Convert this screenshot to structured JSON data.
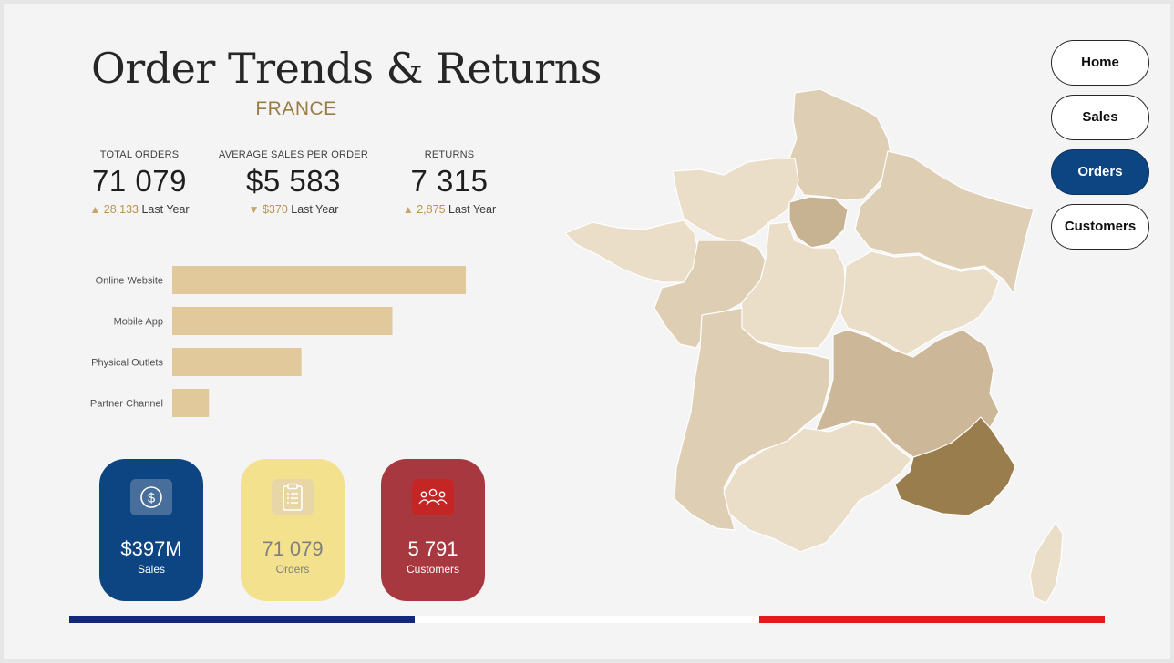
{
  "header": {
    "title": "Order Trends & Returns",
    "subtitle": "FRANCE"
  },
  "kpis": [
    {
      "label": "TOTAL ORDERS",
      "value": "71 079",
      "direction": "up",
      "delta": "28,133",
      "delta_label": "Last Year"
    },
    {
      "label": "AVERAGE SALES PER ORDER",
      "value": "$5 583",
      "direction": "down",
      "delta": "$370",
      "delta_label": "Last Year"
    },
    {
      "label": "RETURNS",
      "value": "7 315",
      "direction": "up",
      "delta": "2,875",
      "delta_label": "Last Year"
    }
  ],
  "chart_data": [
    {
      "type": "bar",
      "orientation": "horizontal",
      "categories": [
        "Online Website",
        "Mobile App",
        "Physical Outlets",
        "Partner Channel"
      ],
      "values": [
        100,
        75,
        44,
        12.5
      ],
      "grid": false,
      "bar_color": "#e2c99b"
    },
    {
      "type": "choropleth",
      "regions": [
        {
          "name": "Hauts-de-France",
          "shade": 0.25
        },
        {
          "name": "Normandie",
          "shade": 0.1
        },
        {
          "name": "Île-de-France",
          "shade": 0.5
        },
        {
          "name": "Grand Est",
          "shade": 0.25
        },
        {
          "name": "Bretagne",
          "shade": 0.1
        },
        {
          "name": "Pays de la Loire",
          "shade": 0.25
        },
        {
          "name": "Centre-Val de Loire",
          "shade": 0.1
        },
        {
          "name": "Bourgogne-Franche-Comté",
          "shade": 0.1
        },
        {
          "name": "Nouvelle-Aquitaine",
          "shade": 0.25
        },
        {
          "name": "Auvergne-Rhône-Alpes",
          "shade": 0.45
        },
        {
          "name": "Occitanie",
          "shade": 0.1
        },
        {
          "name": "Provence-Alpes-Côte d'Azur",
          "shade": 1.0
        },
        {
          "name": "Corse",
          "shade": 0.1
        }
      ],
      "color_low": "#f4e9d7",
      "color_high": "#9a7d4c"
    }
  ],
  "cards": {
    "sales": {
      "value": "$397M",
      "label": "Sales",
      "icon": "dollar-coin-icon"
    },
    "orders": {
      "value": "71 079",
      "label": "Orders",
      "icon": "clipboard-list-icon"
    },
    "customers": {
      "value": "5 791",
      "label": "Customers",
      "icon": "people-group-icon"
    }
  },
  "nav": {
    "items": [
      {
        "label": "Home",
        "active": false
      },
      {
        "label": "Sales",
        "active": false
      },
      {
        "label": "Orders",
        "active": true
      },
      {
        "label": "Customers",
        "active": false
      }
    ]
  },
  "flag_colors": [
    "#14287a",
    "#ffffff",
    "#e01b1b"
  ]
}
